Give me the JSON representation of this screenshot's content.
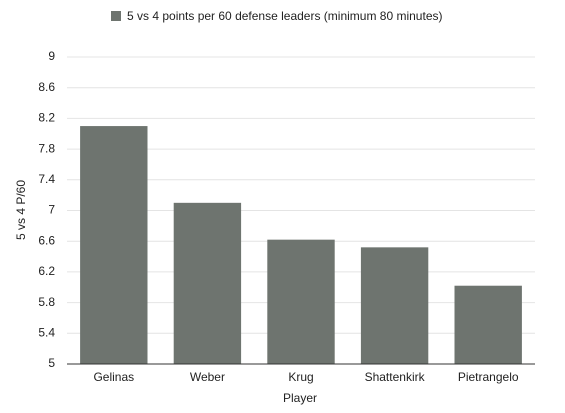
{
  "chart_data": {
    "type": "bar",
    "categories": [
      "Gelinas",
      "Weber",
      "Krug",
      "Shattenkirk",
      "Pietrangelo"
    ],
    "series": [
      {
        "name": "5 vs 4 points per 60 defense leaders (minimum 80 minutes)",
        "color": "#6e746f",
        "values": [
          8.1,
          7.1,
          6.62,
          6.52,
          6.02
        ]
      }
    ],
    "x_label": "Player",
    "y_label": "5 vs 4 P/60",
    "ylim": [
      5,
      9
    ],
    "yticks": [
      5,
      5.4,
      5.8,
      6.2,
      6.6,
      7,
      7.4,
      7.8,
      8.2,
      8.6,
      9
    ],
    "grid": true,
    "legend": "top"
  }
}
